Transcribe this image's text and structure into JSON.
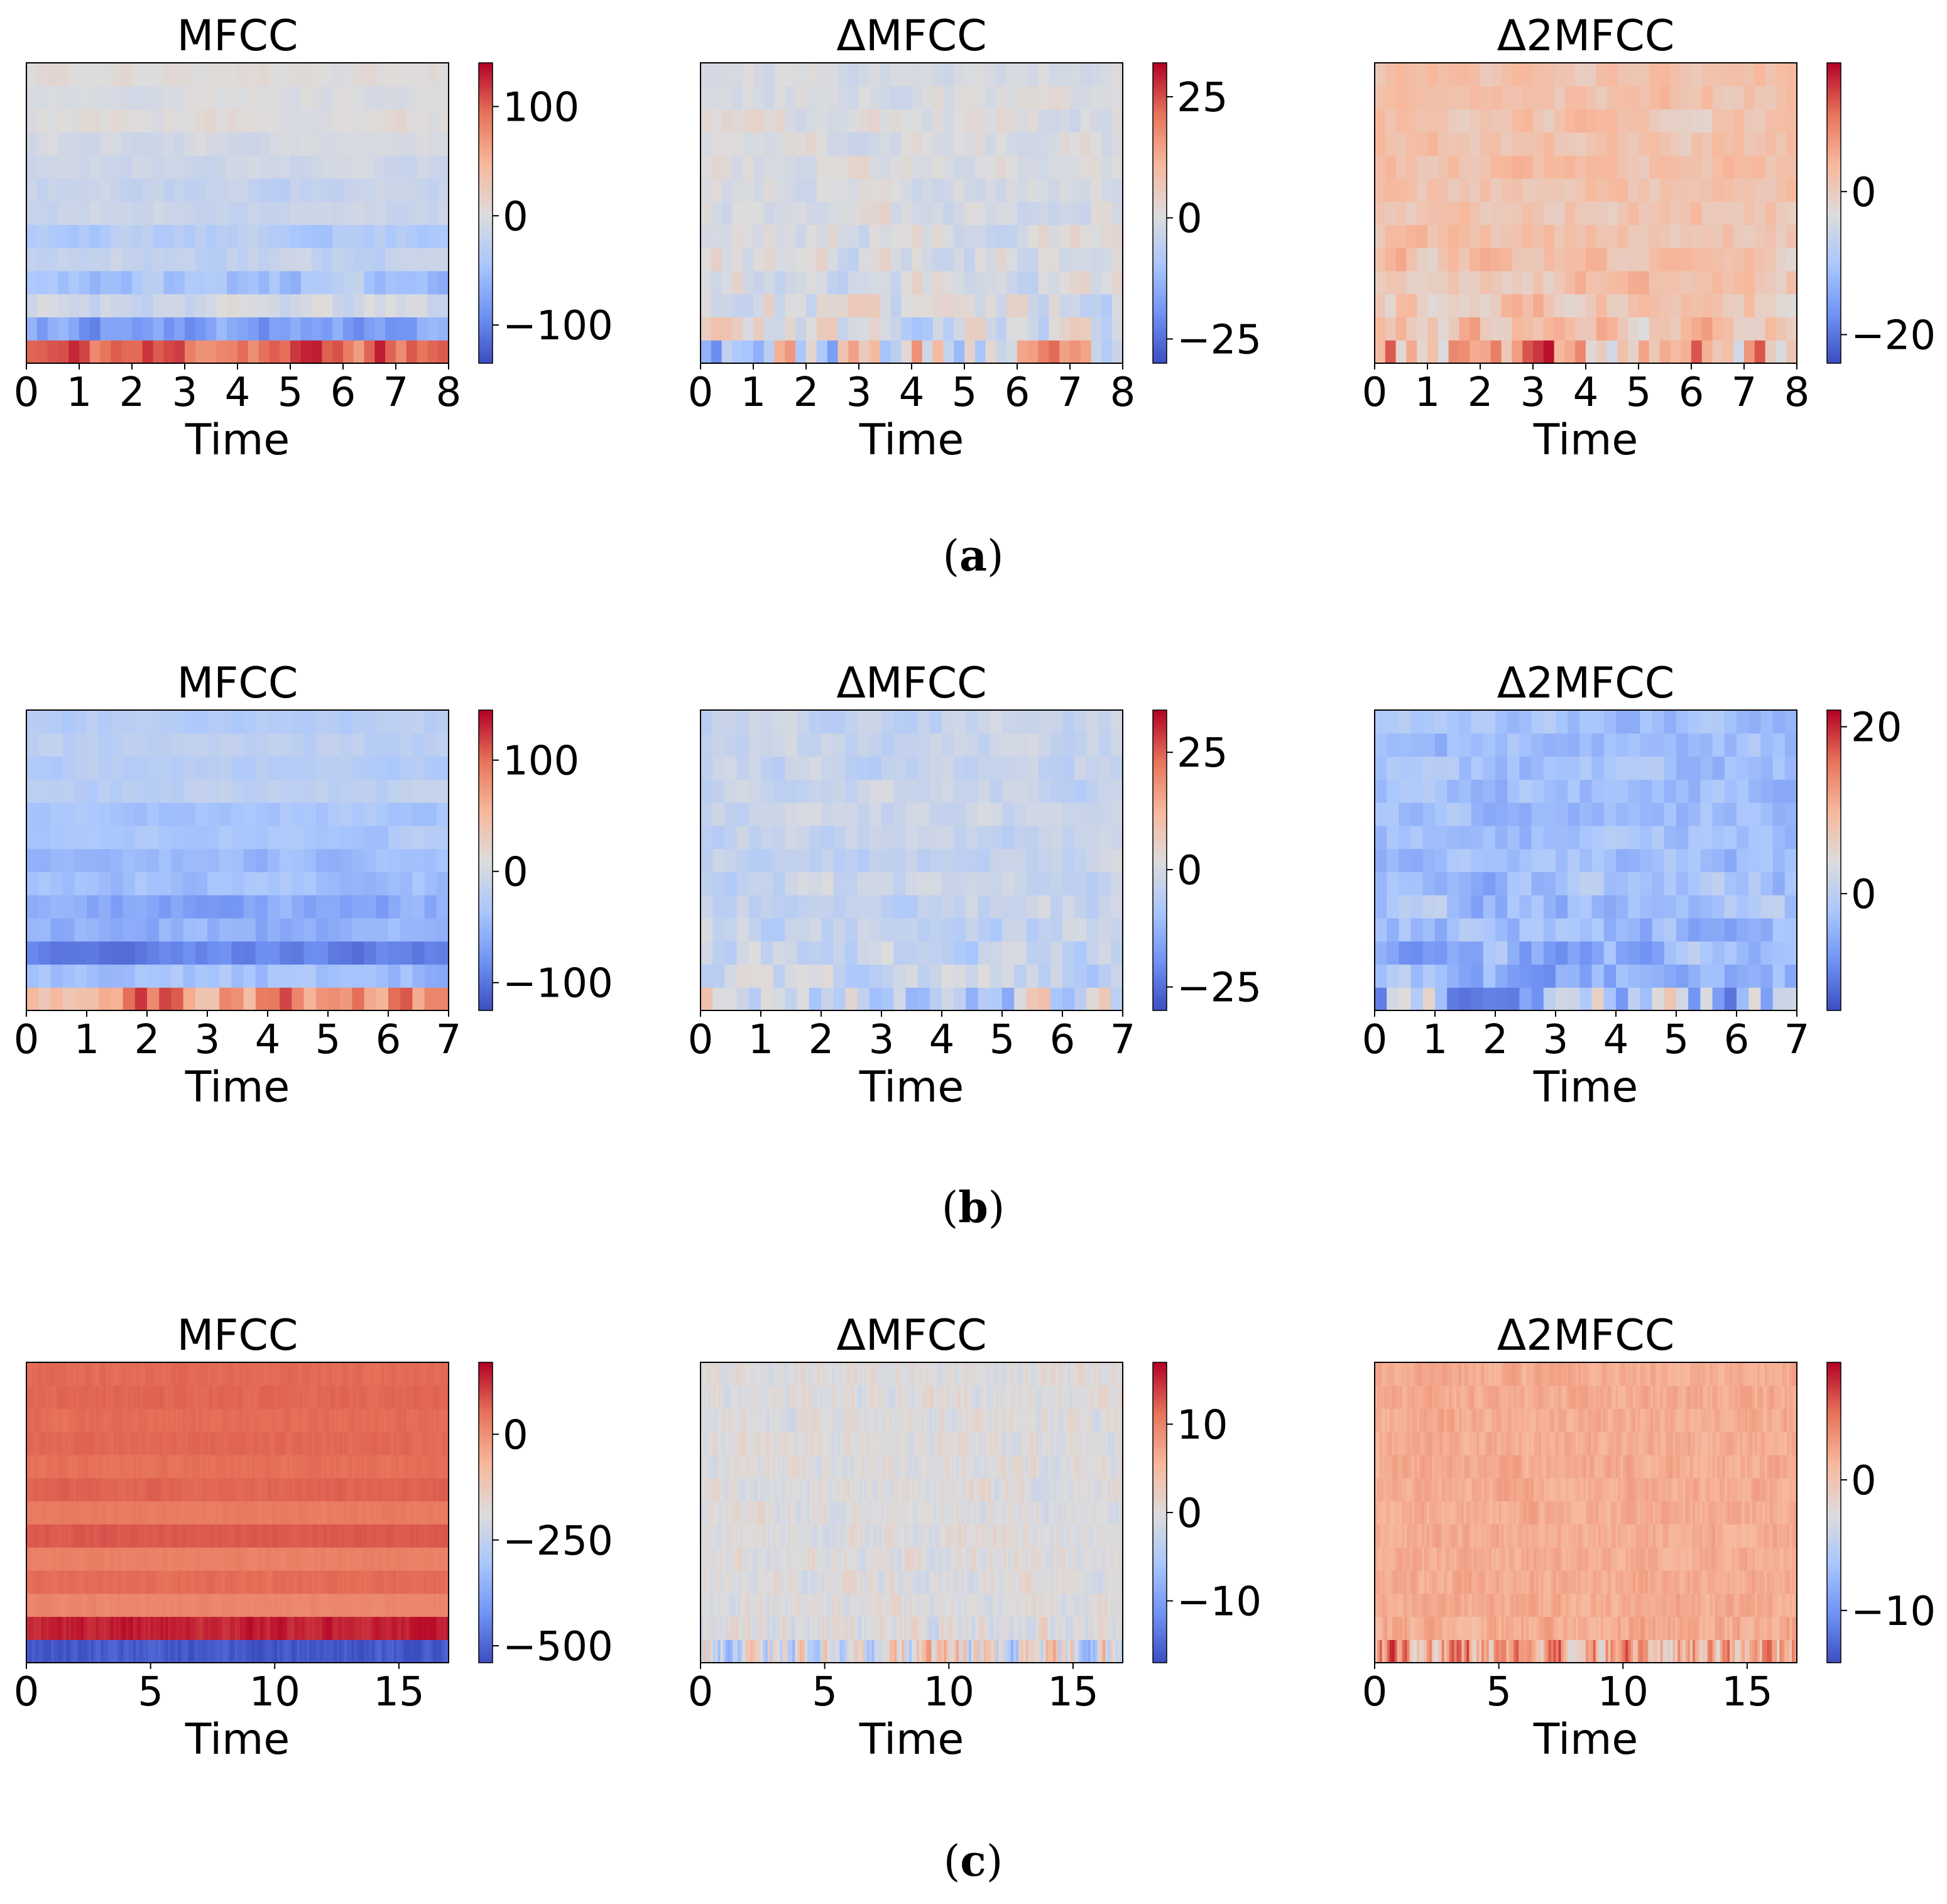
{
  "colormap": {
    "name": "coolwarm",
    "stops": [
      "#3b4cc0",
      "#6f92f3",
      "#aac7fd",
      "#dddcdc",
      "#f7b89c",
      "#e7745b",
      "#b40426"
    ]
  },
  "rows": [
    {
      "label": "(a)",
      "label_main": "a"
    },
    {
      "label": "(b)",
      "label_main": "b"
    },
    {
      "label": "(c)",
      "label_main": "c"
    }
  ],
  "chart_data": [
    {
      "id": "a-mfcc",
      "type": "heatmap",
      "title": "MFCC",
      "xlabel": "Time",
      "ylabel": "",
      "xlim": [
        0,
        8
      ],
      "xticks": [
        "0",
        "1",
        "2",
        "3",
        "4",
        "5",
        "6",
        "7",
        "8"
      ],
      "vrange": [
        -135,
        140
      ],
      "cbar_ticks": [
        {
          "v": 100,
          "label": "100"
        },
        {
          "v": 0,
          "label": "0"
        },
        {
          "v": -100,
          "label": "−100"
        }
      ],
      "n_coef": 13,
      "n_frames": 40,
      "seed": 11,
      "row_means": [
        100,
        -75,
        -10,
        -45,
        -20,
        -35,
        -15,
        -20,
        -10,
        -5,
        5,
        0,
        5
      ],
      "row_variation": [
        45,
        30,
        20,
        25,
        15,
        15,
        10,
        12,
        10,
        10,
        10,
        8,
        8
      ]
    },
    {
      "id": "a-dmfcc",
      "type": "heatmap",
      "title": "ΔMFCC",
      "xlabel": "Time",
      "ylabel": "",
      "xlim": [
        0,
        8
      ],
      "xticks": [
        "0",
        "1",
        "2",
        "3",
        "4",
        "5",
        "6",
        "7",
        "8"
      ],
      "vrange": [
        -30,
        32
      ],
      "cbar_ticks": [
        {
          "v": 25,
          "label": "25"
        },
        {
          "v": 0,
          "label": "0"
        },
        {
          "v": -25,
          "label": "−25"
        }
      ],
      "n_coef": 13,
      "n_frames": 40,
      "seed": 23,
      "row_means": [
        0,
        0,
        0,
        0,
        0,
        0,
        0,
        0,
        0,
        0,
        0,
        0,
        0
      ],
      "row_variation": [
        24,
        10,
        8,
        7,
        6,
        5,
        5,
        4,
        4,
        4,
        4,
        3,
        3
      ]
    },
    {
      "id": "a-d2mfcc",
      "type": "heatmap",
      "title": "Δ2MFCC",
      "xlabel": "Time",
      "ylabel": "",
      "xlim": [
        0,
        8
      ],
      "xticks": [
        "0",
        "1",
        "2",
        "3",
        "4",
        "5",
        "6",
        "7",
        "8"
      ],
      "vrange": [
        -24,
        18
      ],
      "cbar_ticks": [
        {
          "v": 0,
          "label": "0"
        },
        {
          "v": -20,
          "label": "−20"
        }
      ],
      "n_coef": 13,
      "n_frames": 40,
      "seed": 37,
      "row_means": [
        3,
        2,
        2,
        2,
        2,
        2,
        2,
        2,
        2,
        2,
        2,
        2,
        2
      ],
      "row_variation": [
        14,
        6,
        5,
        4,
        4,
        3,
        3,
        3,
        3,
        3,
        3,
        3,
        3
      ]
    },
    {
      "id": "b-mfcc",
      "type": "heatmap",
      "title": "MFCC",
      "xlabel": "Time",
      "ylabel": "",
      "xlim": [
        0,
        7
      ],
      "xticks": [
        "0",
        "1",
        "2",
        "3",
        "4",
        "5",
        "6",
        "7"
      ],
      "vrange": [
        -125,
        145
      ],
      "cbar_ticks": [
        {
          "v": 100,
          "label": "100"
        },
        {
          "v": 0,
          "label": "0"
        },
        {
          "v": -100,
          "label": "−100"
        }
      ],
      "n_coef": 13,
      "n_frames": 35,
      "seed": 51,
      "row_means": [
        80,
        -40,
        -90,
        -55,
        -60,
        -40,
        -45,
        -30,
        -35,
        -20,
        -25,
        -20,
        -25
      ],
      "row_variation": [
        55,
        20,
        15,
        20,
        20,
        15,
        15,
        12,
        12,
        10,
        10,
        10,
        10
      ]
    },
    {
      "id": "b-dmfcc",
      "type": "heatmap",
      "title": "ΔMFCC",
      "xlabel": "Time",
      "ylabel": "",
      "xlim": [
        0,
        7
      ],
      "xticks": [
        "0",
        "1",
        "2",
        "3",
        "4",
        "5",
        "6",
        "7"
      ],
      "vrange": [
        -30,
        34
      ],
      "cbar_ticks": [
        {
          "v": 25,
          "label": "25"
        },
        {
          "v": 0,
          "label": "0"
        },
        {
          "v": -25,
          "label": "−25"
        }
      ],
      "n_coef": 13,
      "n_frames": 35,
      "seed": 67,
      "row_means": [
        -2,
        -3,
        -3,
        -3,
        -3,
        -3,
        -3,
        -3,
        -3,
        -3,
        -3,
        -3,
        -3
      ],
      "row_variation": [
        18,
        7,
        6,
        6,
        5,
        5,
        5,
        4,
        4,
        4,
        4,
        4,
        4
      ]
    },
    {
      "id": "b-d2mfcc",
      "type": "heatmap",
      "title": "Δ2MFCC",
      "xlabel": "Time",
      "ylabel": "",
      "xlim": [
        0,
        7
      ],
      "xticks": [
        "0",
        "1",
        "2",
        "3",
        "4",
        "5",
        "6",
        "7"
      ],
      "vrange": [
        -14,
        22
      ],
      "cbar_ticks": [
        {
          "v": 20,
          "label": "20"
        },
        {
          "v": 0,
          "label": "0"
        }
      ],
      "n_coef": 13,
      "n_frames": 35,
      "seed": 79,
      "row_means": [
        -2,
        -4,
        -4,
        -3,
        -3,
        -3,
        -3,
        -3,
        -3,
        -3,
        -3,
        -3,
        -3
      ],
      "row_variation": [
        12,
        5,
        5,
        4,
        4,
        4,
        3,
        3,
        3,
        3,
        3,
        3,
        3
      ]
    },
    {
      "id": "c-mfcc",
      "type": "heatmap",
      "title": "MFCC",
      "xlabel": "Time",
      "ylabel": "",
      "xlim": [
        0,
        17
      ],
      "xticks": [
        "0",
        "5",
        "10",
        "15"
      ],
      "xtick_values": [
        0,
        5,
        10,
        15
      ],
      "vrange": [
        -540,
        170
      ],
      "cbar_ticks": [
        {
          "v": 0,
          "label": "0"
        },
        {
          "v": -250,
          "label": "−250"
        },
        {
          "v": -500,
          "label": "−500"
        }
      ],
      "n_coef": 13,
      "n_frames": 170,
      "seed": 91,
      "row_means": [
        -520,
        140,
        20,
        60,
        30,
        80,
        40,
        70,
        55,
        65,
        60,
        65,
        62
      ],
      "row_variation": [
        30,
        25,
        8,
        8,
        8,
        8,
        8,
        8,
        8,
        8,
        8,
        8,
        8
      ]
    },
    {
      "id": "c-dmfcc",
      "type": "heatmap",
      "title": "ΔMFCC",
      "xlabel": "Time",
      "ylabel": "",
      "xlim": [
        0,
        17
      ],
      "xticks": [
        "0",
        "5",
        "10",
        "15"
      ],
      "xtick_values": [
        0,
        5,
        10,
        15
      ],
      "vrange": [
        -17,
        17
      ],
      "cbar_ticks": [
        {
          "v": 10,
          "label": "10"
        },
        {
          "v": 0,
          "label": "0"
        },
        {
          "v": -10,
          "label": "−10"
        }
      ],
      "n_coef": 13,
      "n_frames": 170,
      "seed": 103,
      "row_means": [
        0,
        0,
        0,
        0,
        0,
        0,
        0,
        0,
        0,
        0,
        0,
        0,
        0
      ],
      "row_variation": [
        9,
        3,
        2,
        2,
        2,
        2,
        2,
        2,
        2,
        2,
        2,
        2,
        2
      ]
    },
    {
      "id": "c-d2mfcc",
      "type": "heatmap",
      "title": "Δ2MFCC",
      "xlabel": "Time",
      "ylabel": "",
      "xlim": [
        0,
        17
      ],
      "xticks": [
        "0",
        "5",
        "10",
        "15"
      ],
      "xtick_values": [
        0,
        5,
        10,
        15
      ],
      "vrange": [
        -14,
        9
      ],
      "cbar_ticks": [
        {
          "v": 0,
          "label": "0"
        },
        {
          "v": -10,
          "label": "−10"
        }
      ],
      "n_coef": 13,
      "n_frames": 170,
      "seed": 117,
      "row_means": [
        2,
        2,
        2,
        2,
        2,
        2,
        2,
        2,
        2,
        2,
        2,
        2,
        2
      ],
      "row_variation": [
        6,
        1.5,
        1,
        1,
        1,
        1,
        1,
        1,
        1,
        1,
        1,
        1,
        1
      ]
    }
  ]
}
